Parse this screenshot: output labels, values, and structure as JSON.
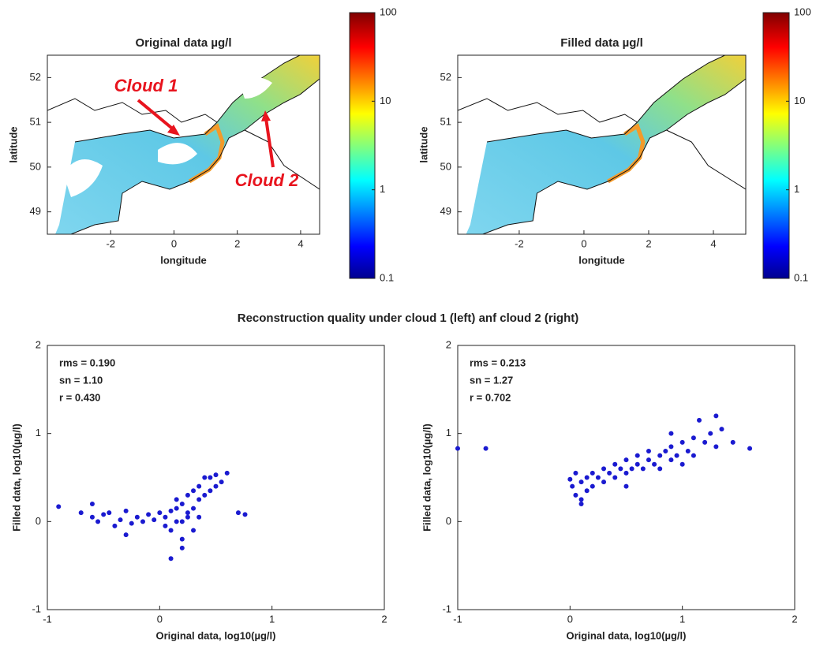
{
  "section_title": "Reconstruction quality under cloud 1 (left) anf cloud 2 (right)",
  "chart_data": [
    {
      "type": "map",
      "title": "Original data µg/l",
      "xlabel": "longitude",
      "ylabel": "latitude",
      "xlim": [
        -4,
        4.6
      ],
      "ylim": [
        48.5,
        52.5
      ],
      "xticks": [
        -2,
        0,
        2,
        4
      ],
      "yticks": [
        49,
        50,
        51,
        52
      ],
      "annotations": [
        "Cloud 1",
        "Cloud 2"
      ],
      "annotation_color": "#e8141e",
      "colorbar": {
        "lim": [
          0.1,
          100
        ],
        "ticks": [
          0.1,
          1,
          10,
          100
        ],
        "log": true
      }
    },
    {
      "type": "map",
      "title": "Filled data µg/l",
      "xlabel": "longitude",
      "ylabel": "latitude",
      "xlim": [
        -3.9,
        5
      ],
      "ylim": [
        48.5,
        52.5
      ],
      "xticks": [
        -2,
        0,
        2,
        4
      ],
      "yticks": [
        49,
        50,
        51,
        52
      ],
      "colorbar": {
        "lim": [
          0.1,
          100
        ],
        "ticks": [
          0.1,
          1,
          10,
          100
        ],
        "log": true
      }
    },
    {
      "type": "scatter",
      "xlabel": "Original data, log10(µg/l)",
      "ylabel": "Filled data, log10(µg/l)",
      "xlim": [
        -1,
        2
      ],
      "ylim": [
        -1,
        2
      ],
      "xticks": [
        -1,
        0,
        1,
        2
      ],
      "yticks": [
        -1,
        0,
        1,
        2
      ],
      "color": "#1a1ad0",
      "stats": [
        "rms = 0.190",
        "sn = 1.10",
        "r = 0.430"
      ],
      "x": [
        -0.9,
        -0.7,
        -0.6,
        -0.55,
        -0.5,
        -0.45,
        -0.4,
        -0.35,
        -0.3,
        -0.25,
        -0.2,
        -0.15,
        -0.1,
        -0.05,
        0,
        0.05,
        0.1,
        0.1,
        0.15,
        0.15,
        0.2,
        0.2,
        0.25,
        0.25,
        0.3,
        0.3,
        0.35,
        0.35,
        0.4,
        0.4,
        0.45,
        0.45,
        0.5,
        0.5,
        0.55,
        0.6,
        0.7,
        0.76,
        0.1,
        0.2,
        0.15,
        0.05,
        0.3,
        0.25,
        0.35,
        -0.3,
        -0.6,
        0.2
      ],
      "y": [
        0.17,
        0.1,
        0.05,
        0.0,
        0.08,
        0.1,
        -0.05,
        0.02,
        0.12,
        -0.02,
        0.05,
        0.0,
        0.08,
        0.02,
        0.1,
        0.05,
        0.12,
        -0.1,
        0.15,
        0.0,
        -0.2,
        0.2,
        0.1,
        0.3,
        0.15,
        0.35,
        0.25,
        0.4,
        0.3,
        0.5,
        0.35,
        0.5,
        0.4,
        0.53,
        0.45,
        0.55,
        0.1,
        0.08,
        -0.42,
        -0.3,
        0.25,
        -0.05,
        -0.1,
        0.05,
        0.05,
        -0.15,
        0.2,
        0.0
      ]
    },
    {
      "type": "scatter",
      "xlabel": "Original data, log10(µg/l)",
      "ylabel": "Filled data, log10(µg/l)",
      "xlim": [
        -1,
        2
      ],
      "ylim": [
        -1,
        2
      ],
      "xticks": [
        -1,
        0,
        1,
        2
      ],
      "yticks": [
        -1,
        0,
        1,
        2
      ],
      "color": "#1a1ad0",
      "stats": [
        "rms = 0.213",
        "sn = 1.27",
        "r = 0.702"
      ],
      "x": [
        -1,
        -0.75,
        0,
        0.02,
        0.05,
        0.05,
        0.1,
        0.1,
        0.15,
        0.15,
        0.2,
        0.2,
        0.25,
        0.3,
        0.3,
        0.35,
        0.4,
        0.4,
        0.45,
        0.5,
        0.5,
        0.55,
        0.6,
        0.6,
        0.65,
        0.7,
        0.7,
        0.75,
        0.8,
        0.8,
        0.85,
        0.9,
        0.9,
        0.95,
        1.0,
        1.0,
        1.05,
        1.1,
        1.1,
        1.15,
        1.2,
        1.25,
        1.3,
        1.3,
        1.35,
        1.45,
        1.6,
        0.1,
        0.9,
        0.5
      ],
      "y": [
        0.83,
        0.83,
        0.48,
        0.4,
        0.55,
        0.3,
        0.45,
        0.2,
        0.5,
        0.35,
        0.55,
        0.4,
        0.5,
        0.45,
        0.6,
        0.55,
        0.5,
        0.65,
        0.6,
        0.55,
        0.7,
        0.6,
        0.65,
        0.75,
        0.6,
        0.7,
        0.8,
        0.65,
        0.75,
        0.6,
        0.8,
        0.7,
        0.85,
        0.75,
        0.9,
        0.65,
        0.8,
        0.95,
        0.75,
        1.15,
        0.9,
        1.0,
        1.2,
        0.85,
        1.05,
        0.9,
        0.83,
        0.25,
        1.0,
        0.4
      ]
    }
  ]
}
